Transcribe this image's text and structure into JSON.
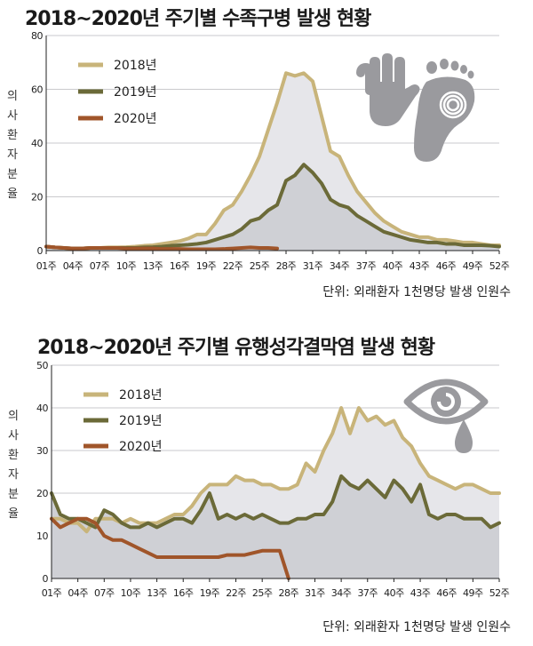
{
  "chart_data": [
    {
      "type": "line",
      "title": "2018~2020년 주기별 수족구병 발생 현황",
      "ylabel": "의사환자분율",
      "unit_note": "단위: 외래환자 1천명당 발생 인원수",
      "ylim": [
        0,
        80
      ],
      "yticks": [
        0,
        20,
        40,
        60,
        80
      ],
      "xlim": [
        1,
        52
      ],
      "xtick_values": [
        1,
        4,
        7,
        10,
        13,
        16,
        19,
        22,
        25,
        28,
        31,
        34,
        37,
        40,
        43,
        46,
        49,
        52
      ],
      "xtick_labels": [
        "01주",
        "04주",
        "07주",
        "10주",
        "13주",
        "16주",
        "19주",
        "22주",
        "25주",
        "28주",
        "31주",
        "34주",
        "37주",
        "40주",
        "43주",
        "46주",
        "49주",
        "52주"
      ],
      "legend_position": "top-left",
      "series": [
        {
          "name": "2018년",
          "color": "#c8b47a",
          "fill": "#e6e6ea",
          "x": [
            1,
            2,
            3,
            4,
            5,
            6,
            7,
            8,
            9,
            10,
            11,
            12,
            13,
            14,
            15,
            16,
            17,
            18,
            19,
            20,
            21,
            22,
            23,
            24,
            25,
            26,
            27,
            28,
            29,
            30,
            31,
            32,
            33,
            34,
            35,
            36,
            37,
            38,
            39,
            40,
            41,
            42,
            43,
            44,
            45,
            46,
            47,
            48,
            49,
            50,
            51,
            52
          ],
          "y": [
            1.5,
            1.2,
            1.0,
            0.8,
            0.8,
            1.0,
            1.0,
            1.2,
            1.2,
            1.3,
            1.5,
            1.8,
            2.0,
            2.5,
            3.0,
            3.5,
            4.5,
            6,
            6,
            10,
            15,
            17,
            22,
            28,
            35,
            45,
            55,
            66,
            65,
            66,
            63,
            50,
            37,
            35,
            28,
            22,
            18,
            14,
            11,
            9,
            7,
            6,
            5,
            5,
            4,
            4,
            3.5,
            3,
            3,
            2.5,
            2,
            2
          ]
        },
        {
          "name": "2019년",
          "color": "#6b6a38",
          "fill": "#cfd0d5",
          "x": [
            1,
            2,
            3,
            4,
            5,
            6,
            7,
            8,
            9,
            10,
            11,
            12,
            13,
            14,
            15,
            16,
            17,
            18,
            19,
            20,
            21,
            22,
            23,
            24,
            25,
            26,
            27,
            28,
            29,
            30,
            31,
            32,
            33,
            34,
            35,
            36,
            37,
            38,
            39,
            40,
            41,
            42,
            43,
            44,
            45,
            46,
            47,
            48,
            49,
            50,
            51,
            52
          ],
          "y": [
            1.5,
            1.2,
            1.0,
            0.8,
            0.8,
            1.0,
            1.0,
            1.0,
            1.0,
            1.0,
            1.0,
            1.2,
            1.3,
            1.5,
            1.8,
            2.0,
            2.2,
            2.5,
            3,
            4,
            5,
            6,
            8,
            11,
            12,
            15,
            17,
            26,
            28,
            32,
            29,
            25,
            19,
            17,
            16,
            13,
            11,
            9,
            7,
            6,
            5,
            4,
            3.5,
            3,
            3,
            2.5,
            2.5,
            2,
            2,
            2,
            1.8,
            1.5
          ]
        },
        {
          "name": "2020년",
          "color": "#a0552a",
          "x": [
            1,
            2,
            3,
            4,
            5,
            6,
            7,
            8,
            9,
            10,
            11,
            12,
            13,
            14,
            15,
            16,
            17,
            18,
            19,
            20,
            21,
            22,
            23,
            24,
            25,
            26,
            27
          ],
          "y": [
            1.5,
            1.2,
            1.0,
            0.8,
            0.8,
            1.0,
            1.0,
            1.0,
            1.0,
            0.8,
            0.8,
            0.8,
            0.8,
            0.6,
            0.6,
            0.6,
            0.5,
            0.5,
            0.5,
            0.5,
            0.6,
            0.8,
            1.0,
            1.2,
            1.0,
            1.0,
            0.8
          ]
        }
      ]
    },
    {
      "type": "line",
      "title": "2018~2020년 주기별 유행성각결막염 발생 현황",
      "ylabel": "의사환자분율",
      "unit_note": "단위: 외래환자 1천명당 발생 인원수",
      "ylim": [
        0,
        50
      ],
      "yticks": [
        0,
        10,
        20,
        30,
        40,
        50
      ],
      "xlim": [
        1,
        52
      ],
      "xtick_values": [
        1,
        4,
        7,
        10,
        13,
        16,
        19,
        22,
        25,
        28,
        31,
        34,
        37,
        40,
        43,
        46,
        49,
        52
      ],
      "xtick_labels": [
        "01주",
        "04주",
        "07주",
        "10주",
        "13주",
        "16주",
        "19주",
        "22주",
        "25주",
        "28주",
        "31주",
        "34주",
        "37주",
        "40주",
        "43주",
        "46주",
        "49주",
        "52주"
      ],
      "legend_position": "top-left",
      "series": [
        {
          "name": "2018년",
          "color": "#c8b47a",
          "fill": "#e6e6ea",
          "x": [
            1,
            2,
            3,
            4,
            5,
            6,
            7,
            8,
            9,
            10,
            11,
            12,
            13,
            14,
            15,
            16,
            17,
            18,
            19,
            20,
            21,
            22,
            23,
            24,
            25,
            26,
            27,
            28,
            29,
            30,
            31,
            32,
            33,
            34,
            35,
            36,
            37,
            38,
            39,
            40,
            41,
            42,
            43,
            44,
            45,
            46,
            47,
            48,
            49,
            50,
            51,
            52
          ],
          "y": [
            14,
            14,
            13,
            13,
            11,
            14,
            14,
            14,
            13,
            14,
            13,
            13,
            13,
            14,
            15,
            15,
            17,
            20,
            22,
            22,
            22,
            24,
            23,
            23,
            22,
            22,
            21,
            21,
            22,
            27,
            25,
            30,
            34,
            40,
            34,
            40,
            37,
            38,
            36,
            37,
            33,
            31,
            27,
            24,
            23,
            22,
            21,
            22,
            22,
            21,
            20,
            20
          ]
        },
        {
          "name": "2019년",
          "color": "#6b6a38",
          "fill": "#cfd0d5",
          "x": [
            1,
            2,
            3,
            4,
            5,
            6,
            7,
            8,
            9,
            10,
            11,
            12,
            13,
            14,
            15,
            16,
            17,
            18,
            19,
            20,
            21,
            22,
            23,
            24,
            25,
            26,
            27,
            28,
            29,
            30,
            31,
            32,
            33,
            34,
            35,
            36,
            37,
            38,
            39,
            40,
            41,
            42,
            43,
            44,
            45,
            46,
            47,
            48,
            49,
            50,
            51,
            52
          ],
          "y": [
            20,
            15,
            14,
            14,
            13,
            12,
            16,
            15,
            13,
            12,
            12,
            13,
            12,
            13,
            14,
            14,
            13,
            16,
            20,
            14,
            15,
            14,
            15,
            14,
            15,
            14,
            13,
            13,
            14,
            14,
            15,
            15,
            18,
            24,
            22,
            21,
            23,
            21,
            19,
            23,
            21,
            18,
            22,
            15,
            14,
            15,
            15,
            14,
            14,
            14,
            12,
            13
          ]
        },
        {
          "name": "2020년",
          "color": "#a0552a",
          "x": [
            1,
            2,
            3,
            4,
            5,
            6,
            7,
            8,
            9,
            10,
            11,
            12,
            13,
            14,
            15,
            16,
            17,
            18,
            19,
            20,
            21,
            22,
            23,
            24,
            25,
            26,
            27,
            28
          ],
          "y": [
            14,
            12,
            13,
            14,
            14,
            13,
            10,
            9,
            9,
            8,
            7,
            6,
            5,
            5,
            5,
            5,
            5,
            5,
            5,
            5,
            5.5,
            5.5,
            5.5,
            6,
            6.5,
            6.5,
            6.5,
            0
          ]
        }
      ]
    }
  ],
  "icons": [
    "hand-icon",
    "foot-icon",
    "eye-icon",
    "tear-icon"
  ]
}
